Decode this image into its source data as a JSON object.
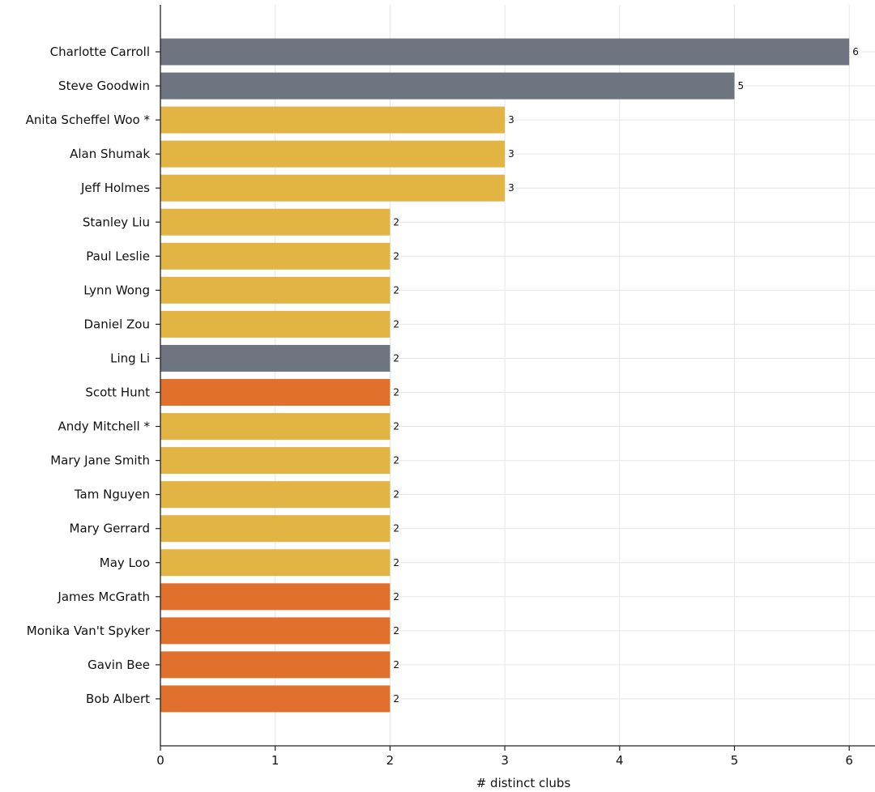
{
  "chart_data": {
    "type": "bar",
    "orientation": "horizontal",
    "title": "",
    "xlabel": "# distinct clubs",
    "ylabel": "",
    "xlim": [
      0,
      6.2
    ],
    "xticks": [
      0,
      1,
      2,
      3,
      4,
      5,
      6
    ],
    "grid": true,
    "colors": {
      "gray": "#6e7580",
      "gold": "#e2b444",
      "orange": "#e0702b"
    },
    "bars": [
      {
        "label": "Charlotte Carroll",
        "value": 6,
        "color": "gray"
      },
      {
        "label": "Steve Goodwin",
        "value": 5,
        "color": "gray"
      },
      {
        "label": "Anita Scheffel Woo *",
        "value": 3,
        "color": "gold"
      },
      {
        "label": "Alan Shumak",
        "value": 3,
        "color": "gold"
      },
      {
        "label": "Jeff Holmes",
        "value": 3,
        "color": "gold"
      },
      {
        "label": "Stanley Liu",
        "value": 2,
        "color": "gold"
      },
      {
        "label": "Paul Leslie",
        "value": 2,
        "color": "gold"
      },
      {
        "label": "Lynn Wong",
        "value": 2,
        "color": "gold"
      },
      {
        "label": "Daniel Zou",
        "value": 2,
        "color": "gold"
      },
      {
        "label": "Ling Li",
        "value": 2,
        "color": "gray"
      },
      {
        "label": "Scott Hunt",
        "value": 2,
        "color": "orange"
      },
      {
        "label": "Andy Mitchell *",
        "value": 2,
        "color": "gold"
      },
      {
        "label": "Mary Jane Smith",
        "value": 2,
        "color": "gold"
      },
      {
        "label": "Tam Nguyen",
        "value": 2,
        "color": "gold"
      },
      {
        "label": "Mary Gerrard",
        "value": 2,
        "color": "gold"
      },
      {
        "label": "May Loo",
        "value": 2,
        "color": "gold"
      },
      {
        "label": "James McGrath",
        "value": 2,
        "color": "orange"
      },
      {
        "label": "Monika Van't Spyker",
        "value": 2,
        "color": "orange"
      },
      {
        "label": "Gavin Bee",
        "value": 2,
        "color": "orange"
      },
      {
        "label": "Bob Albert",
        "value": 2,
        "color": "orange"
      }
    ]
  }
}
